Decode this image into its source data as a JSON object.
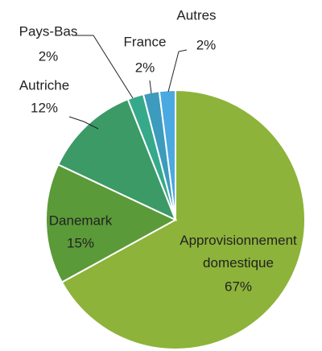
{
  "chart_data": {
    "type": "pie",
    "categories": [
      "Approvisionnement domestique",
      "Danemark",
      "Autriche",
      "Pays-Bas",
      "France",
      "Autres"
    ],
    "values": [
      67,
      15,
      12,
      2,
      2,
      2
    ],
    "value_labels": [
      "67%",
      "15%",
      "12%",
      "2%",
      "2%",
      "2%"
    ],
    "colors": [
      "#8db33a",
      "#5b9a38",
      "#3b9a66",
      "#37a98b",
      "#3d9bbd",
      "#4aa9e0"
    ]
  }
}
